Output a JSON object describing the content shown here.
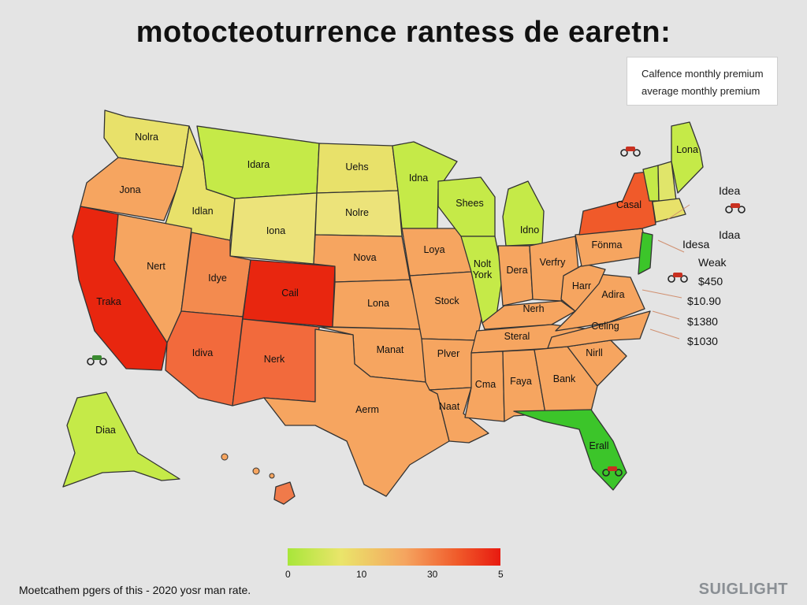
{
  "title": "motocteoturrence rantess de earetn:",
  "legend": {
    "line1": "Calfence monthly premium",
    "line2": "average monthly premium"
  },
  "states": [
    {
      "id": "wa",
      "label": "Nolra",
      "color": "#e8e16a"
    },
    {
      "id": "or",
      "label": "Jona",
      "color": "#f6a560"
    },
    {
      "id": "ca",
      "label": "Traka",
      "color": "#e8260f"
    },
    {
      "id": "id",
      "label": "Idlan",
      "color": "#e8e16a"
    },
    {
      "id": "nv",
      "label": "Nert",
      "color": "#f6a560"
    },
    {
      "id": "mt",
      "label": "Idara",
      "color": "#c5ea48"
    },
    {
      "id": "wy",
      "label": "Iona",
      "color": "#ece37a"
    },
    {
      "id": "ut",
      "label": "Idye",
      "color": "#f38b4f"
    },
    {
      "id": "co",
      "label": "Cail",
      "color": "#e8260f"
    },
    {
      "id": "az",
      "label": "Idiva",
      "color": "#f26a3c"
    },
    {
      "id": "nm",
      "label": "Nerk",
      "color": "#f26a3c"
    },
    {
      "id": "nd",
      "label": "Uehs",
      "color": "#e8e16a"
    },
    {
      "id": "sd",
      "label": "Nolre",
      "color": "#ece37a"
    },
    {
      "id": "ne",
      "label": "Nova",
      "color": "#f6a560"
    },
    {
      "id": "ks",
      "label": "Lona",
      "color": "#f6a560"
    },
    {
      "id": "ok",
      "label": "Manat",
      "color": "#f6a560"
    },
    {
      "id": "tx",
      "label": "Aerm",
      "color": "#f6a560"
    },
    {
      "id": "mn",
      "label": "Idna",
      "color": "#c5ea48"
    },
    {
      "id": "ia",
      "label": "Loya",
      "color": "#f6a560"
    },
    {
      "id": "mo",
      "label": "Stock",
      "color": "#f6a560"
    },
    {
      "id": "ar",
      "label": "Plver",
      "color": "#f6a560"
    },
    {
      "id": "la",
      "label": "Naat",
      "color": "#f6a560"
    },
    {
      "id": "wi",
      "label": "Shees",
      "color": "#c5ea48"
    },
    {
      "id": "il",
      "label": "Nolt York",
      "color": "#c5ea48"
    },
    {
      "id": "mi",
      "label": "Idno",
      "color": "#c5ea48"
    },
    {
      "id": "in",
      "label": "Dera",
      "color": "#f6a560"
    },
    {
      "id": "oh",
      "label": "Verfry",
      "color": "#f6a560"
    },
    {
      "id": "ky",
      "label": "Nerh",
      "color": "#f6a560"
    },
    {
      "id": "tn",
      "label": "Steral",
      "color": "#f6a560"
    },
    {
      "id": "ms",
      "label": "Cma",
      "color": "#f6a560"
    },
    {
      "id": "al",
      "label": "Faya",
      "color": "#f6a560"
    },
    {
      "id": "ga",
      "label": "Bank",
      "color": "#f6a560"
    },
    {
      "id": "fl",
      "label": "Erall",
      "color": "#3cc52a"
    },
    {
      "id": "sc",
      "label": "Nirll",
      "color": "#f6a560"
    },
    {
      "id": "nc",
      "label": "Celing",
      "color": "#f6a560"
    },
    {
      "id": "va",
      "label": "Adira",
      "color": "#f6a560"
    },
    {
      "id": "wv",
      "label": "Harr",
      "color": "#f6a560"
    },
    {
      "id": "pa",
      "label": "Fönma",
      "color": "#f6a560"
    },
    {
      "id": "ny",
      "label": "Casal",
      "color": "#f05a2a"
    },
    {
      "id": "nj",
      "label": "",
      "color": "#3cc52a"
    },
    {
      "id": "me",
      "label": "Lona",
      "color": "#c5ea48"
    },
    {
      "id": "vt",
      "label": "",
      "color": "#c5ea48"
    },
    {
      "id": "nh",
      "label": "",
      "color": "#e0e56a"
    },
    {
      "id": "ma",
      "label": "",
      "color": "#e8e16a"
    },
    {
      "id": "ak",
      "label": "Diaa",
      "color": "#c5ea48"
    },
    {
      "id": "hi",
      "label": "",
      "color": "#f07a4a"
    }
  ],
  "side_labels": [
    "Idea",
    "Idaa",
    "Idesa",
    "Weak",
    "$450",
    "$10.90",
    "$1380",
    "$1030"
  ],
  "scale": {
    "ticks": [
      "0",
      "10",
      "30",
      "5"
    ]
  },
  "footer": "Moetcathem pgers of this - 2020 yosr man rate.",
  "brand": "SUIGLIGHT"
}
